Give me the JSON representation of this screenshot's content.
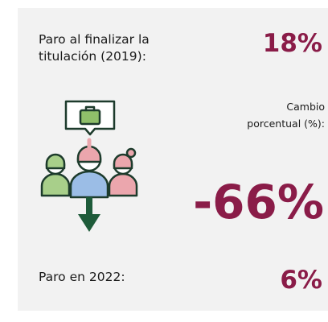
{
  "panel": {
    "start_label": [
      "Paro al finalizar la",
      "titulación (2019):"
    ],
    "start_value": "18%",
    "change_label": [
      "Cambio",
      "porcentual (%):"
    ],
    "change_value": "-66%",
    "end_label": "Paro en 2022:",
    "end_value": "6%"
  }
}
